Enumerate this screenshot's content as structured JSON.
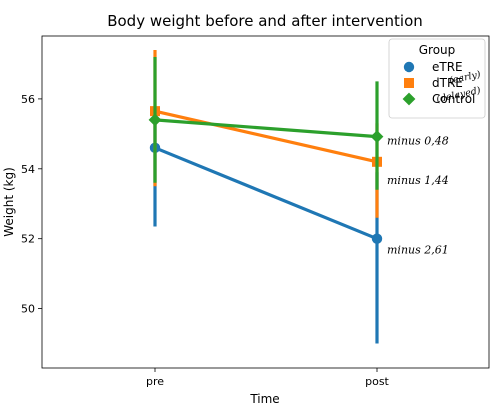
{
  "chart_data": {
    "type": "line",
    "title": "Body weight before and after intervention",
    "xlabel": "Time",
    "ylabel": "Weight (kg)",
    "categories": [
      "pre",
      "post"
    ],
    "ylim": [
      48.3,
      57.8
    ],
    "yticks": [
      50,
      52,
      54,
      56
    ],
    "grid": false,
    "legend": {
      "title": "Group",
      "placement": "top-right"
    },
    "series": [
      {
        "name": "eTRE",
        "annotation": "(early)",
        "color": "#1f77b4",
        "marker": "circle",
        "values": [
          54.6,
          52.0
        ],
        "ci_low": [
          52.35,
          49.0
        ],
        "ci_high": [
          55.4,
          53.9
        ]
      },
      {
        "name": "dTRE",
        "annotation": "(delayed)",
        "color": "#ff7f0e",
        "marker": "square",
        "values": [
          55.65,
          54.2
        ],
        "ci_low": [
          53.5,
          52.6
        ],
        "ci_high": [
          57.4,
          55.3
        ]
      },
      {
        "name": "Control",
        "annotation": "",
        "color": "#2ca02c",
        "marker": "diamond",
        "values": [
          55.4,
          54.92
        ],
        "ci_low": [
          53.6,
          53.4
        ],
        "ci_high": [
          57.2,
          56.5
        ]
      }
    ],
    "change_labels": [
      {
        "series": "Control",
        "text": "minus 0,48"
      },
      {
        "series": "dTRE",
        "text": "minus 1,44"
      },
      {
        "series": "eTRE",
        "text": "minus 2,61"
      }
    ]
  }
}
